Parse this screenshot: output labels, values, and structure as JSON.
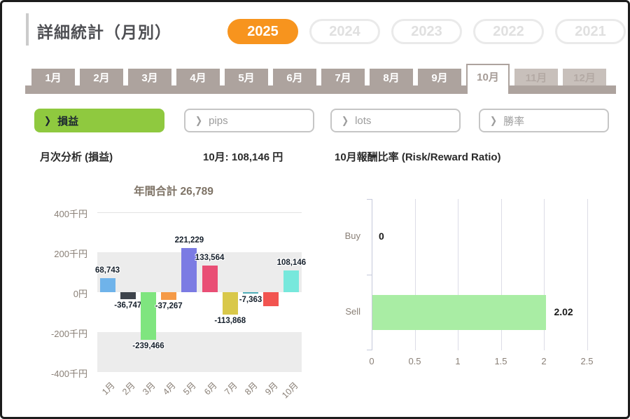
{
  "page": {
    "title": "詳細統計（月別）"
  },
  "years": {
    "items": [
      {
        "label": "2025",
        "active": true
      },
      {
        "label": "2024",
        "active": false
      },
      {
        "label": "2023",
        "active": false
      },
      {
        "label": "2022",
        "active": false
      },
      {
        "label": "2021",
        "active": false
      }
    ]
  },
  "month_tabs": {
    "items": [
      {
        "label": "1月",
        "state": "normal"
      },
      {
        "label": "2月",
        "state": "normal"
      },
      {
        "label": "3月",
        "state": "normal"
      },
      {
        "label": "4月",
        "state": "normal"
      },
      {
        "label": "5月",
        "state": "normal"
      },
      {
        "label": "6月",
        "state": "normal"
      },
      {
        "label": "7月",
        "state": "normal"
      },
      {
        "label": "8月",
        "state": "normal"
      },
      {
        "label": "9月",
        "state": "normal"
      },
      {
        "label": "10月",
        "state": "active"
      },
      {
        "label": "11月",
        "state": "disabled"
      },
      {
        "label": "12月",
        "state": "disabled"
      }
    ]
  },
  "metric_buttons": {
    "chevron": "❯",
    "items": [
      {
        "label": "損益",
        "active": true
      },
      {
        "label": "pips",
        "active": false
      },
      {
        "label": "lots",
        "active": false
      },
      {
        "label": "勝率",
        "active": false
      }
    ]
  },
  "section_headers": {
    "left": "月次分析 (損益)",
    "center": "10月: 108,146 円",
    "right": "10月報酬比率 (Risk/Reward Ratio)"
  },
  "colors": {
    "accent_orange": "#F7941E",
    "year_inactive_border": "#EAEAEA",
    "year_inactive_text": "#E0E0E0",
    "tab_taupe": "#ADA39E",
    "tab_active_text": "#A59B96",
    "tab_disabled_bg": "#C8C0BB",
    "tab_disabled_text": "#B3A9A4",
    "metric_green": "#8FC93F",
    "metric_dark_text": "#1C2630",
    "metric_inactive_border": "#C6C6C6",
    "metric_inactive_text": "#9C9C9C",
    "chart_axis_text": "#8A8077",
    "chart_title_text": "#7E7366",
    "chart_band": "#ECECEC",
    "chart_topline": "#E3E3E3",
    "data_label": "#16202C",
    "rr_bar_green": "#A9EDA4",
    "rr_grid_line": "#DCDCE6",
    "rr_axis_line": "#C5C9DA"
  },
  "chart_data": [
    {
      "type": "bar",
      "title": "年間合計 26,789",
      "categories": [
        "1月",
        "2月",
        "3月",
        "4月",
        "5月",
        "6月",
        "7月",
        "8月",
        "9月",
        "10月"
      ],
      "values": [
        68743,
        -36747,
        -239466,
        -37267,
        221229,
        133564,
        -113868,
        -7363,
        -70182,
        108146
      ],
      "data_labels": [
        "68,743",
        "-36,747",
        "-239,466",
        "-37,267",
        "221,229",
        "133,564",
        "-113,868",
        "-7,363",
        "",
        "108,146"
      ],
      "bar_colors": [
        "#6FB3EA",
        "#3E444C",
        "#7FE57F",
        "#F59A47",
        "#7B7BE3",
        "#E94F75",
        "#D9C84A",
        "#4FADB8",
        "#F25450",
        "#77E8DC"
      ],
      "ylabel_ticks": [
        "400千円",
        "200千円",
        "0円",
        "-200千円",
        "-400千円"
      ],
      "ylim": [
        -400000,
        400000
      ],
      "grid": "alternating-bands",
      "legend": "none"
    },
    {
      "type": "bar-horizontal",
      "title": "10月報酬比率 (Risk/Reward Ratio)",
      "categories": [
        "Buy",
        "Sell"
      ],
      "values": [
        0,
        2.02
      ],
      "data_labels": [
        "0",
        "2.02"
      ],
      "xtick_labels": [
        "0",
        "0.5",
        "1",
        "1.5",
        "2",
        "2.5"
      ],
      "xticks": [
        0,
        0.5,
        1,
        1.5,
        2,
        2.5
      ],
      "xlim": [
        0,
        2.75
      ],
      "grid": "vertical",
      "legend": "none"
    }
  ]
}
